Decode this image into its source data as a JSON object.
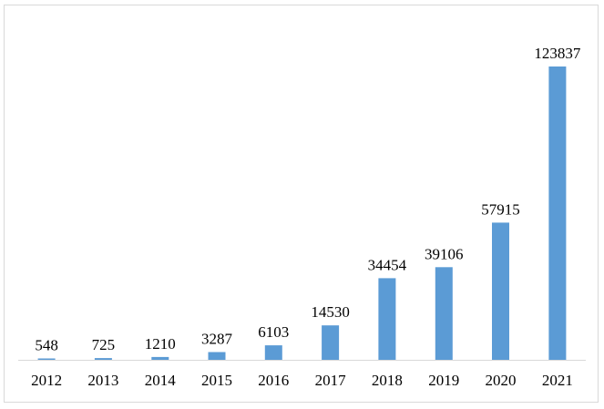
{
  "chart_data": {
    "type": "bar",
    "title": "",
    "xlabel": "",
    "ylabel": "",
    "categories": [
      "2012",
      "2013",
      "2014",
      "2015",
      "2016",
      "2017",
      "2018",
      "2019",
      "2020",
      "2021"
    ],
    "values": [
      548,
      725,
      1210,
      3287,
      6103,
      14530,
      34454,
      39106,
      57915,
      123837
    ],
    "data_labels": [
      "548",
      "725",
      "1210",
      "3287",
      "6103",
      "14530",
      "34454",
      "39106",
      "57915",
      "123837"
    ],
    "ylim": [
      0,
      123837
    ],
    "grid": false,
    "legend": "none",
    "colors": {
      "bar": "#5b9bd5",
      "axis": "#d9d9d9",
      "text": "#000000"
    }
  }
}
